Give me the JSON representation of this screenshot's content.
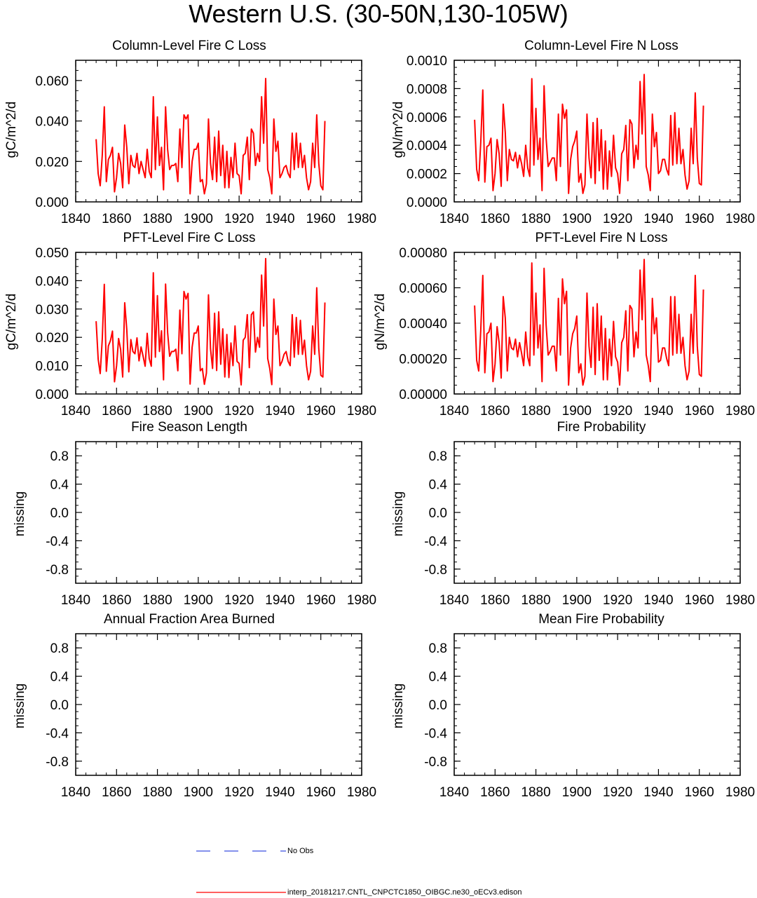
{
  "page_title": "Western U.S. (30-50N,130-105W)",
  "colors": {
    "model": "#ff0000",
    "obs": "#3b4fe0",
    "axis": "#000000"
  },
  "legend": {
    "obs_label": "No Obs",
    "model_label": "interp_20181217.CNTL_CNPCTC1850_OIBGC.ne30_oECv3.edison"
  },
  "chart_data": [
    {
      "type": "line",
      "title": "Column-Level Fire C Loss",
      "ylabel": "gC/m^2/d",
      "xlim": [
        1840,
        1980
      ],
      "ylim": [
        0,
        0.07
      ],
      "xticks": [
        "1840",
        "1860",
        "1880",
        "1900",
        "1920",
        "1940",
        "1960",
        "1980"
      ],
      "yticks": [
        {
          "v": 0.0,
          "label": "0.000"
        },
        {
          "v": 0.02,
          "label": "0.020"
        },
        {
          "v": 0.04,
          "label": "0.040"
        },
        {
          "v": 0.06,
          "label": "0.060"
        }
      ],
      "yminor_step": 0.005,
      "series": [
        {
          "name": "interp_20181217.CNTL_CNPCTC1850_OIBGC.ne30_oECv3.edison",
          "x_start": 1850,
          "values": [
            0.031,
            0.014,
            0.008,
            0.023,
            0.047,
            0.01,
            0.021,
            0.023,
            0.027,
            0.005,
            0.012,
            0.024,
            0.019,
            0.007,
            0.038,
            0.027,
            0.009,
            0.023,
            0.018,
            0.017,
            0.024,
            0.014,
            0.02,
            0.016,
            0.012,
            0.026,
            0.015,
            0.012,
            0.052,
            0.016,
            0.042,
            0.018,
            0.027,
            0.006,
            0.047,
            0.026,
            0.016,
            0.018,
            0.018,
            0.019,
            0.01,
            0.036,
            0.017,
            0.043,
            0.041,
            0.043,
            0.004,
            0.02,
            0.026,
            0.026,
            0.029,
            0.01,
            0.011,
            0.004,
            0.009,
            0.041,
            0.019,
            0.011,
            0.032,
            0.01,
            0.035,
            0.013,
            0.028,
            0.007,
            0.025,
            0.007,
            0.022,
            0.012,
            0.029,
            0.014,
            0.013,
            0.004,
            0.023,
            0.024,
            0.032,
            0.011,
            0.036,
            0.034,
            0.018,
            0.024,
            0.02,
            0.052,
            0.029,
            0.061,
            0.016,
            0.012,
            0.004,
            0.041,
            0.025,
            0.03,
            0.012,
            0.014,
            0.017,
            0.018,
            0.014,
            0.012,
            0.034,
            0.016,
            0.034,
            0.017,
            0.029,
            0.017,
            0.023,
            0.012,
            0.006,
            0.01,
            0.029,
            0.017,
            0.043,
            0.019,
            0.008,
            0.006,
            0.04
          ]
        }
      ]
    },
    {
      "type": "line",
      "title": "Column-Level Fire N Loss",
      "ylabel": "gN/m^2/d",
      "xlim": [
        1840,
        1980
      ],
      "ylim": [
        0,
        0.001
      ],
      "xticks": [
        "1840",
        "1860",
        "1880",
        "1900",
        "1920",
        "1940",
        "1960",
        "1980"
      ],
      "yticks": [
        {
          "v": 0.0,
          "label": "0.0000"
        },
        {
          "v": 0.0002,
          "label": "0.0002"
        },
        {
          "v": 0.0004,
          "label": "0.0004"
        },
        {
          "v": 0.0006,
          "label": "0.0006"
        },
        {
          "v": 0.0008,
          "label": "0.0008"
        },
        {
          "v": 0.001,
          "label": "0.0010"
        }
      ],
      "yminor_step": 5e-05,
      "series": [
        {
          "name": "interp_20181217.CNTL_CNPCTC1850_OIBGC.ne30_oECv3.edison",
          "x_start": 1850,
          "values": [
            0.00058,
            0.00023,
            0.00015,
            0.00042,
            0.00079,
            0.00014,
            0.00039,
            0.0004,
            0.00045,
            8e-05,
            0.0002,
            0.00044,
            0.00034,
            0.00011,
            0.00069,
            0.00049,
            0.00015,
            0.00037,
            0.0003,
            0.00029,
            0.00035,
            0.00024,
            0.00033,
            0.00027,
            0.00018,
            0.0004,
            0.00024,
            0.00018,
            0.00087,
            0.00026,
            0.00066,
            0.0003,
            0.00045,
            8e-05,
            0.00082,
            0.00045,
            0.00025,
            0.00028,
            0.00031,
            0.00031,
            0.00015,
            0.00062,
            0.00025,
            0.00069,
            0.00059,
            0.00065,
            6e-05,
            0.0003,
            0.00039,
            0.00043,
            0.0005,
            0.00014,
            0.0002,
            6e-05,
            0.00012,
            0.00062,
            0.00031,
            0.00017,
            0.00056,
            0.00013,
            0.00059,
            0.00022,
            0.00051,
            9e-05,
            0.00043,
            9e-05,
            0.00036,
            0.00018,
            0.00047,
            0.00024,
            0.0002,
            6e-05,
            0.00034,
            0.00037,
            0.00054,
            0.00015,
            0.00058,
            0.00055,
            0.00024,
            0.0004,
            0.0003,
            0.00085,
            0.00048,
            0.0009,
            0.00025,
            0.00019,
            8e-05,
            0.00062,
            0.00039,
            0.00049,
            0.0002,
            0.00022,
            0.0003,
            0.0003,
            0.00023,
            0.00019,
            0.00061,
            0.00026,
            0.00063,
            0.00027,
            0.00052,
            0.00027,
            0.00037,
            0.00019,
            9e-05,
            0.00015,
            0.00052,
            0.00027,
            0.00077,
            0.00031,
            0.00013,
            0.00012,
            0.00068
          ]
        }
      ]
    },
    {
      "type": "line",
      "title": "PFT-Level Fire C Loss",
      "ylabel": "gC/m^2/d",
      "xlim": [
        1840,
        1980
      ],
      "ylim": [
        0,
        0.05
      ],
      "xticks": [
        "1840",
        "1860",
        "1880",
        "1900",
        "1920",
        "1940",
        "1960",
        "1980"
      ],
      "yticks": [
        {
          "v": 0.0,
          "label": "0.000"
        },
        {
          "v": 0.01,
          "label": "0.010"
        },
        {
          "v": 0.02,
          "label": "0.020"
        },
        {
          "v": 0.03,
          "label": "0.030"
        },
        {
          "v": 0.04,
          "label": "0.040"
        },
        {
          "v": 0.05,
          "label": "0.050"
        }
      ],
      "yminor_step": 0.0025,
      "series": [
        {
          "name": "interp_20181217.CNTL_CNPCTC1850_OIBGC.ne30_oECv3.edison",
          "x_start": 1850,
          "values": [
            0.0257,
            0.0123,
            0.0072,
            0.0193,
            0.0387,
            0.008,
            0.017,
            0.0188,
            0.0222,
            0.0043,
            0.0099,
            0.0196,
            0.0157,
            0.006,
            0.0322,
            0.0228,
            0.0078,
            0.0192,
            0.015,
            0.0142,
            0.0198,
            0.0117,
            0.0166,
            0.0133,
            0.0098,
            0.0214,
            0.0125,
            0.0098,
            0.0428,
            0.013,
            0.0347,
            0.015,
            0.0223,
            0.005,
            0.0388,
            0.0217,
            0.0133,
            0.015,
            0.015,
            0.0158,
            0.0082,
            0.0296,
            0.0142,
            0.0362,
            0.0335,
            0.0355,
            0.0035,
            0.0165,
            0.0215,
            0.0215,
            0.024,
            0.0082,
            0.009,
            0.0034,
            0.0074,
            0.035,
            0.016,
            0.009,
            0.0285,
            0.0083,
            0.029,
            0.0105,
            0.023,
            0.006,
            0.021,
            0.0058,
            0.018,
            0.01,
            0.024,
            0.0115,
            0.0108,
            0.0032,
            0.019,
            0.02,
            0.028,
            0.0093,
            0.028,
            0.029,
            0.0148,
            0.02,
            0.0165,
            0.042,
            0.024,
            0.0478,
            0.0125,
            0.009,
            0.0033,
            0.0335,
            0.021,
            0.024,
            0.01,
            0.0115,
            0.014,
            0.015,
            0.0115,
            0.01,
            0.028,
            0.013,
            0.027,
            0.014,
            0.026,
            0.014,
            0.019,
            0.01,
            0.005,
            0.008,
            0.024,
            0.014,
            0.0375,
            0.016,
            0.0066,
            0.006,
            0.0323
          ]
        }
      ]
    },
    {
      "type": "line",
      "title": "PFT-Level Fire N Loss",
      "ylabel": "gN/m^2/d",
      "xlim": [
        1840,
        1980
      ],
      "ylim": [
        0,
        0.0008
      ],
      "xticks": [
        "1840",
        "1860",
        "1880",
        "1900",
        "1920",
        "1940",
        "1960",
        "1980"
      ],
      "yticks": [
        {
          "v": 0.0,
          "label": "0.00000"
        },
        {
          "v": 0.0002,
          "label": "0.00020"
        },
        {
          "v": 0.0004,
          "label": "0.00040"
        },
        {
          "v": 0.0006,
          "label": "0.00060"
        },
        {
          "v": 0.0008,
          "label": "0.00080"
        }
      ],
      "yminor_step": 5e-05,
      "series": [
        {
          "name": "interp_20181217.CNTL_CNPCTC1850_OIBGC.ne30_oECv3.edison",
          "x_start": 1850,
          "values": [
            0.0005,
            0.00019,
            0.00013,
            0.00036,
            0.00067,
            0.00012,
            0.00034,
            0.00035,
            0.0004,
            7e-05,
            0.00017,
            0.00038,
            0.00029,
            9e-05,
            0.00055,
            0.00043,
            0.00013,
            0.00032,
            0.00026,
            0.00025,
            0.00031,
            0.00021,
            0.00029,
            0.00023,
            0.00016,
            0.00035,
            0.00021,
            0.00016,
            0.00074,
            0.00022,
            0.00057,
            0.00026,
            0.00039,
            7e-05,
            0.00071,
            0.00039,
            0.00022,
            0.00024,
            0.00027,
            0.00027,
            0.00013,
            0.00054,
            0.00022,
            0.00065,
            0.00051,
            0.00058,
            5e-05,
            0.00026,
            0.00034,
            0.00037,
            0.00044,
            0.00012,
            0.00017,
            5e-05,
            0.0001,
            0.00057,
            0.00027,
            0.00015,
            0.00049,
            0.00011,
            0.00051,
            0.00019,
            0.00044,
            8e-05,
            0.00037,
            8e-05,
            0.00031,
            0.00016,
            0.00041,
            0.00021,
            0.00018,
            5e-05,
            0.00029,
            0.00032,
            0.00047,
            0.00013,
            0.0005,
            0.00048,
            0.00021,
            0.00035,
            0.00026,
            0.0007,
            0.00042,
            0.00076,
            0.00022,
            0.00016,
            7e-05,
            0.00054,
            0.00034,
            0.00043,
            0.00018,
            0.00019,
            0.00026,
            0.00026,
            0.0002,
            0.00016,
            0.00055,
            0.00022,
            0.00055,
            0.00023,
            0.00045,
            0.00023,
            0.00032,
            0.00016,
            8e-05,
            0.00013,
            0.00045,
            0.00023,
            0.00067,
            0.00027,
            0.00011,
            0.0001,
            0.00059
          ]
        }
      ]
    },
    {
      "type": "line",
      "title": "Fire Season Length",
      "ylabel": "missing",
      "xlim": [
        1840,
        1980
      ],
      "ylim": [
        -1,
        1
      ],
      "xticks": [
        "1840",
        "1860",
        "1880",
        "1900",
        "1920",
        "1940",
        "1960",
        "1980"
      ],
      "yticks": [
        {
          "v": 0.8,
          "label": "0.8"
        },
        {
          "v": 0.4,
          "label": "0.4"
        },
        {
          "v": 0.0,
          "label": "0.0"
        },
        {
          "v": -0.4,
          "label": "-0.4"
        },
        {
          "v": -0.8,
          "label": "-0.8"
        }
      ],
      "yminor_step": 0.1,
      "series": []
    },
    {
      "type": "line",
      "title": "Fire Probability",
      "ylabel": "missing",
      "xlim": [
        1840,
        1980
      ],
      "ylim": [
        -1,
        1
      ],
      "xticks": [
        "1840",
        "1860",
        "1880",
        "1900",
        "1920",
        "1940",
        "1960",
        "1980"
      ],
      "yticks": [
        {
          "v": 0.8,
          "label": "0.8"
        },
        {
          "v": 0.4,
          "label": "0.4"
        },
        {
          "v": 0.0,
          "label": "0.0"
        },
        {
          "v": -0.4,
          "label": "-0.4"
        },
        {
          "v": -0.8,
          "label": "-0.8"
        }
      ],
      "yminor_step": 0.1,
      "series": []
    },
    {
      "type": "line",
      "title": "Annual Fraction Area Burned",
      "ylabel": "missing",
      "xlim": [
        1840,
        1980
      ],
      "ylim": [
        -1,
        1
      ],
      "xticks": [
        "1840",
        "1860",
        "1880",
        "1900",
        "1920",
        "1940",
        "1960",
        "1980"
      ],
      "yticks": [
        {
          "v": 0.8,
          "label": "0.8"
        },
        {
          "v": 0.4,
          "label": "0.4"
        },
        {
          "v": 0.0,
          "label": "0.0"
        },
        {
          "v": -0.4,
          "label": "-0.4"
        },
        {
          "v": -0.8,
          "label": "-0.8"
        }
      ],
      "yminor_step": 0.1,
      "series": []
    },
    {
      "type": "line",
      "title": "Mean Fire Probability",
      "ylabel": "missing",
      "xlim": [
        1840,
        1980
      ],
      "ylim": [
        -1,
        1
      ],
      "xticks": [
        "1840",
        "1860",
        "1880",
        "1900",
        "1920",
        "1940",
        "1960",
        "1980"
      ],
      "yticks": [
        {
          "v": 0.8,
          "label": "0.8"
        },
        {
          "v": 0.4,
          "label": "0.4"
        },
        {
          "v": 0.0,
          "label": "0.0"
        },
        {
          "v": -0.4,
          "label": "-0.4"
        },
        {
          "v": -0.8,
          "label": "-0.8"
        }
      ],
      "yminor_step": 0.1,
      "series": []
    }
  ]
}
